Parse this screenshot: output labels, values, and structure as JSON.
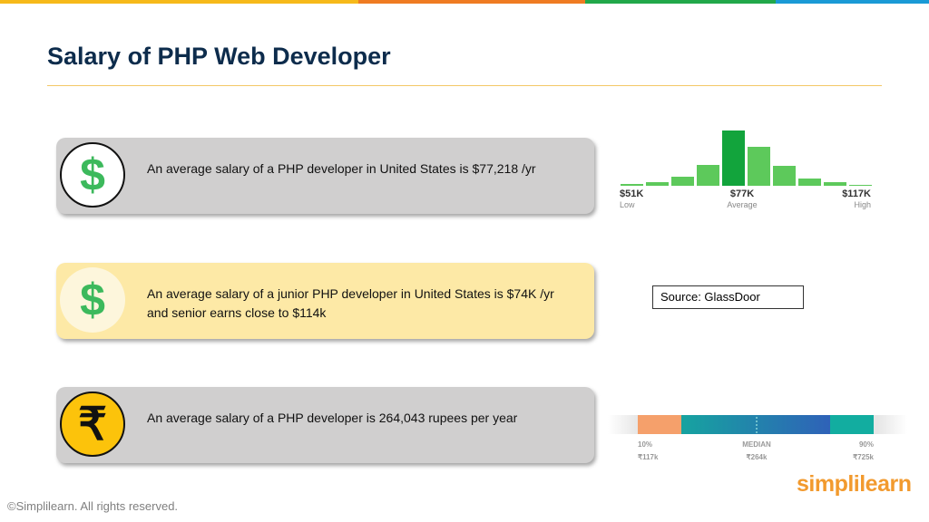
{
  "header": {
    "title": "Salary of PHP Web Developer"
  },
  "cards": [
    {
      "icon": "$",
      "text": "An average salary of a PHP developer in United States is $77,218 /yr"
    },
    {
      "icon": "$",
      "text": "An average salary of a junior PHP developer in United States is $74K /yr and senior earns close to $114k"
    },
    {
      "icon": "₹",
      "text": "An average salary of a PHP developer is 264,043 rupees per year"
    }
  ],
  "histogram": {
    "values": [
      2,
      4,
      10,
      23,
      61,
      43,
      22,
      8,
      4,
      1
    ],
    "labels": [
      {
        "amount": "$51K",
        "caption": "Low"
      },
      {
        "amount": "$77K",
        "caption": "Average"
      },
      {
        "amount": "$117K",
        "caption": "High"
      }
    ]
  },
  "source": "Source: GlassDoor",
  "percentiles": [
    {
      "label": "10%",
      "amount": "₹117k"
    },
    {
      "label": "MEDIAN",
      "amount": "₹264k"
    },
    {
      "label": "90%",
      "amount": "₹725k"
    }
  ],
  "logo": "simplilearn",
  "footer": "©Simplilearn. All rights reserved."
}
